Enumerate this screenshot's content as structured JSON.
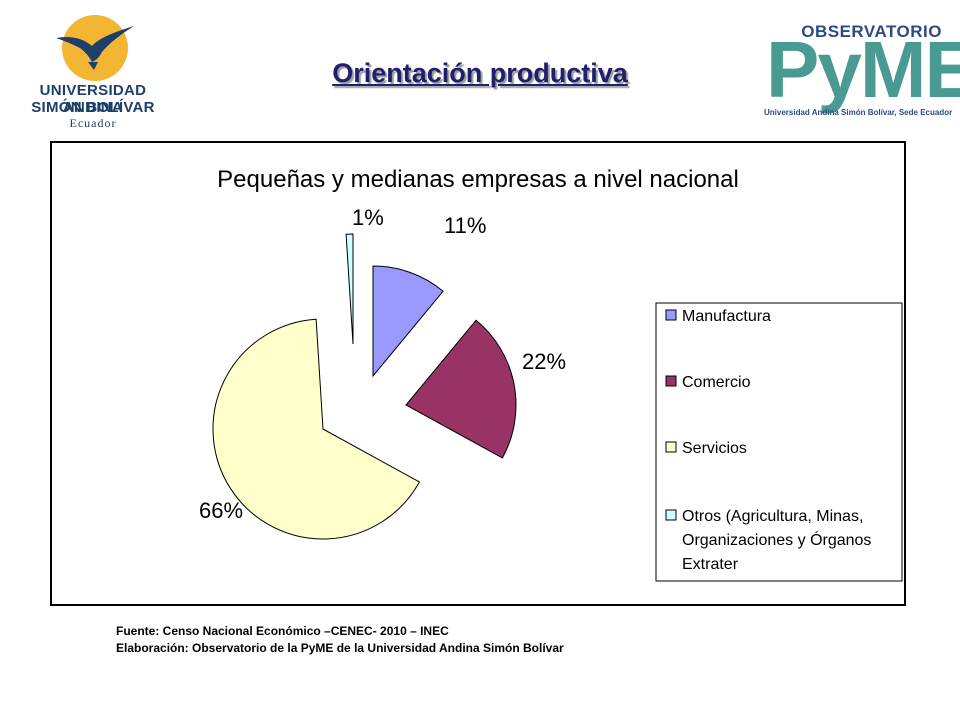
{
  "header": {
    "title": "Orientación productiva",
    "left_logo": {
      "name_line1": "UNIVERSIDAD ANDINA",
      "name_line2": "SIMÓN BOLÍVAR",
      "country": "Ecuador"
    },
    "right_logo": {
      "top": "OBSERVATORIO",
      "brand": "PyME",
      "subtitle": "Universidad Andina Simón Bolívar, Sede Ecuador"
    }
  },
  "chart_data": {
    "type": "pie",
    "title": "Pequeñas y medianas empresas a nivel nacional",
    "slices": [
      {
        "label": "Manufactura",
        "value": 11,
        "display": "11%",
        "color": "#9999ff"
      },
      {
        "label": "Comercio",
        "value": 22,
        "display": "22%",
        "color": "#993366"
      },
      {
        "label": "Servicios",
        "value": 66,
        "display": "66%",
        "color": "#ffffcc"
      },
      {
        "label": "Otros (Agricultura, Minas, Organizaciones y Órganos Extrater",
        "value": 1,
        "display": "1%",
        "color": "#ccffff"
      }
    ],
    "legend_lines": [
      [
        "Manufactura"
      ],
      [
        "Comercio"
      ],
      [
        "Servicios"
      ],
      [
        "Otros (Agricultura, Minas,",
        "Organizaciones y Órganos",
        "Extrater"
      ]
    ],
    "legend_position": "right",
    "exploded": true
  },
  "footer": {
    "source": "Fuente: Censo Nacional Económico –CENEC- 2010 – INEC",
    "credit": "Elaboración: Observatorio de la PyME de la Universidad Andina Simón Bolívar"
  }
}
